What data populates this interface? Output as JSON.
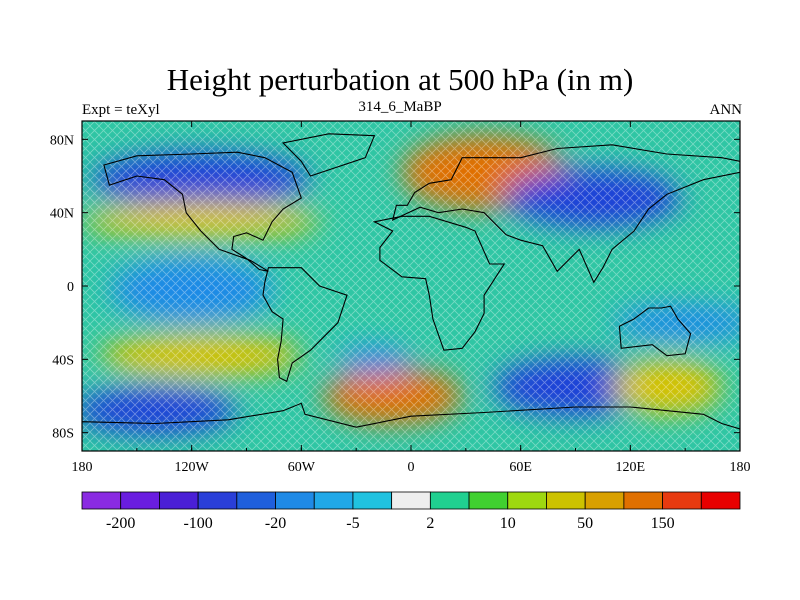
{
  "title": "Height perturbation at 500 hPa (in m)",
  "left_string": "Expt = teXyl",
  "center_string": "314_6_MaBP",
  "right_string": "ANN",
  "map": {
    "projection": "cylindrical equidistant",
    "lon_range": [
      -180,
      180
    ],
    "lat_range": [
      -90,
      90
    ],
    "x_ticks": [
      {
        "lon": -180,
        "label": "180"
      },
      {
        "lon": -120,
        "label": "120W"
      },
      {
        "lon": -60,
        "label": "60W"
      },
      {
        "lon": 0,
        "label": "0"
      },
      {
        "lon": 60,
        "label": "60E"
      },
      {
        "lon": 120,
        "label": "120E"
      },
      {
        "lon": 180,
        "label": "180"
      }
    ],
    "y_ticks": [
      {
        "lat": 80,
        "label": "80N"
      },
      {
        "lat": 40,
        "label": "40N"
      },
      {
        "lat": 0,
        "label": "0"
      },
      {
        "lat": -40,
        "label": "40S"
      },
      {
        "lat": -80,
        "label": "80S"
      }
    ],
    "background_color": "#2fc6a4",
    "coastline_color": "#000000",
    "field_blobs": [
      {
        "lon": -115,
        "lat": 58,
        "rlon": 60,
        "rlat": 15,
        "level": "-100"
      },
      {
        "lon": -140,
        "lat": -68,
        "rlon": 45,
        "rlat": 13,
        "level": "-100"
      },
      {
        "lon": -120,
        "lat": -2,
        "rlon": 45,
        "rlat": 18,
        "level": "-20"
      },
      {
        "lon": 40,
        "lat": 62,
        "rlon": 45,
        "rlat": 20,
        "level": "150"
      },
      {
        "lon": 100,
        "lat": 48,
        "rlon": 48,
        "rlat": 16,
        "level": "-100"
      },
      {
        "lon": 90,
        "lat": -55,
        "rlon": 45,
        "rlat": 16,
        "level": "-100"
      },
      {
        "lon": -10,
        "lat": -60,
        "rlon": 38,
        "rlat": 15,
        "level": "150"
      },
      {
        "lon": -115,
        "lat": 36,
        "rlon": 65,
        "rlat": 10,
        "level": "50"
      },
      {
        "lon": -115,
        "lat": -38,
        "rlon": 55,
        "rlat": 12,
        "level": "50"
      },
      {
        "lon": 140,
        "lat": -55,
        "rlon": 30,
        "rlat": 15,
        "level": "50"
      },
      {
        "lon": 150,
        "lat": -20,
        "rlon": 40,
        "rlat": 10,
        "level": "-20"
      },
      {
        "lon": -20,
        "lat": -40,
        "rlon": 20,
        "rlat": 8,
        "level": "-20"
      }
    ],
    "continents": [
      [
        [
          -20,
          35
        ],
        [
          -5,
          38
        ],
        [
          10,
          38
        ],
        [
          30,
          32
        ],
        [
          35,
          30
        ],
        [
          43,
          12
        ],
        [
          51,
          12
        ],
        [
          40,
          -5
        ],
        [
          40,
          -15
        ],
        [
          35,
          -25
        ],
        [
          28,
          -34
        ],
        [
          18,
          -35
        ],
        [
          12,
          -18
        ],
        [
          10,
          -5
        ],
        [
          8,
          4
        ],
        [
          -5,
          5
        ],
        [
          -17,
          14
        ],
        [
          -17,
          21
        ],
        [
          -10,
          30
        ]
      ],
      [
        [
          -10,
          36
        ],
        [
          -8,
          44
        ],
        [
          -2,
          44
        ],
        [
          2,
          51
        ],
        [
          10,
          56
        ],
        [
          22,
          58
        ],
        [
          28,
          70
        ],
        [
          60,
          70
        ],
        [
          80,
          75
        ],
        [
          110,
          77
        ],
        [
          140,
          72
        ],
        [
          170,
          70
        ],
        [
          180,
          68
        ],
        [
          180,
          62
        ],
        [
          160,
          58
        ],
        [
          140,
          50
        ],
        [
          130,
          42
        ],
        [
          122,
          30
        ],
        [
          110,
          20
        ],
        [
          105,
          10
        ],
        [
          100,
          2
        ],
        [
          92,
          20
        ],
        [
          80,
          8
        ],
        [
          72,
          22
        ],
        [
          60,
          25
        ],
        [
          52,
          28
        ],
        [
          40,
          40
        ],
        [
          28,
          42
        ],
        [
          15,
          40
        ],
        [
          5,
          43
        ]
      ],
      [
        [
          -168,
          66
        ],
        [
          -150,
          71
        ],
        [
          -120,
          72
        ],
        [
          -95,
          73
        ],
        [
          -80,
          70
        ],
        [
          -65,
          62
        ],
        [
          -60,
          48
        ],
        [
          -70,
          42
        ],
        [
          -76,
          35
        ],
        [
          -81,
          25
        ],
        [
          -90,
          29
        ],
        [
          -97,
          27
        ],
        [
          -98,
          20
        ],
        [
          -90,
          15
        ],
        [
          -83,
          9
        ],
        [
          -78,
          8
        ],
        [
          -88,
          14
        ],
        [
          -105,
          20
        ],
        [
          -115,
          30
        ],
        [
          -123,
          40
        ],
        [
          -125,
          50
        ],
        [
          -135,
          58
        ],
        [
          -150,
          60
        ],
        [
          -165,
          55
        ]
      ],
      [
        [
          -78,
          10
        ],
        [
          -60,
          10
        ],
        [
          -50,
          0
        ],
        [
          -35,
          -5
        ],
        [
          -40,
          -20
        ],
        [
          -48,
          -28
        ],
        [
          -55,
          -35
        ],
        [
          -65,
          -42
        ],
        [
          -68,
          -52
        ],
        [
          -72,
          -50
        ],
        [
          -73,
          -40
        ],
        [
          -71,
          -30
        ],
        [
          -70,
          -18
        ],
        [
          -76,
          -14
        ],
        [
          -81,
          -5
        ],
        [
          -80,
          2
        ]
      ],
      [
        [
          -55,
          60
        ],
        [
          -25,
          70
        ],
        [
          -20,
          82
        ],
        [
          -45,
          83
        ],
        [
          -70,
          78
        ],
        [
          -60,
          68
        ]
      ],
      [
        [
          114,
          -22
        ],
        [
          122,
          -18
        ],
        [
          130,
          -12
        ],
        [
          137,
          -12
        ],
        [
          142,
          -11
        ],
        [
          146,
          -18
        ],
        [
          153,
          -26
        ],
        [
          150,
          -37
        ],
        [
          140,
          -38
        ],
        [
          132,
          -32
        ],
        [
          115,
          -34
        ]
      ],
      [
        [
          -180,
          -74
        ],
        [
          -140,
          -75
        ],
        [
          -100,
          -73
        ],
        [
          -70,
          -68
        ],
        [
          -60,
          -64
        ],
        [
          -58,
          -70
        ],
        [
          -30,
          -77
        ],
        [
          0,
          -71
        ],
        [
          40,
          -69
        ],
        [
          90,
          -66
        ],
        [
          120,
          -66
        ],
        [
          160,
          -70
        ],
        [
          170,
          -75
        ],
        [
          180,
          -78
        ],
        [
          180,
          -90
        ],
        [
          -180,
          -90
        ]
      ]
    ]
  },
  "colorbar": {
    "colors": [
      "#8a2be2",
      "#6a1de0",
      "#4a1fd6",
      "#2a3fd8",
      "#1f5fdc",
      "#1f8ae6",
      "#20a8e8",
      "#20c2e0",
      "#eeeeee",
      "#20d090",
      "#40d030",
      "#9ed810",
      "#ccc200",
      "#d8a000",
      "#e07000",
      "#e83a10",
      "#e80000"
    ],
    "labels": [
      {
        "boundary": 1,
        "text": "-200"
      },
      {
        "boundary": 3,
        "text": "-100"
      },
      {
        "boundary": 5,
        "text": "-20"
      },
      {
        "boundary": 7,
        "text": "-5"
      },
      {
        "boundary": 9,
        "text": "2"
      },
      {
        "boundary": 11,
        "text": "10"
      },
      {
        "boundary": 13,
        "text": "50"
      },
      {
        "boundary": 15,
        "text": "150"
      }
    ]
  },
  "level_colors": {
    "-100": "#1f3fd8",
    "-20": "#1f8ae6",
    "50": "#d8c200",
    "150": "#e07000"
  }
}
